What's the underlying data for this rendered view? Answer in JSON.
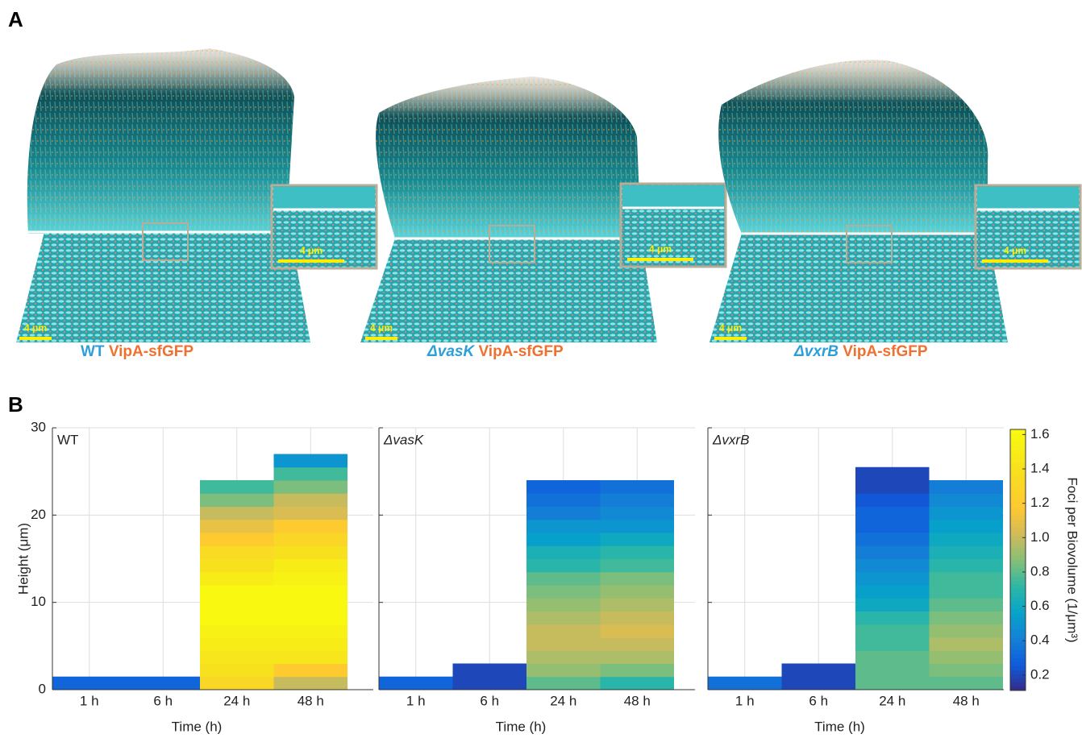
{
  "panel_a": {
    "label": "A",
    "images": [
      {
        "strain": "WT",
        "reporter": "VipA-sfGFP",
        "scale_bar": "4 μm",
        "inset_scale_bar": "4 μm"
      },
      {
        "strain": "ΔvasK",
        "reporter": "VipA-sfGFP",
        "scale_bar": "4 μm",
        "inset_scale_bar": "4 μm"
      },
      {
        "strain": "ΔvxrB",
        "reporter": "VipA-sfGFP",
        "scale_bar": "4 μm",
        "inset_scale_bar": "4 μm"
      }
    ]
  },
  "panel_b_label": "B",
  "colorbar": {
    "label": "Foci per Biovolume (1/μm³)",
    "colormap": "parula",
    "clim": [
      0.11,
      1.63
    ],
    "ticks": [
      0.2,
      0.4,
      0.6,
      0.8,
      {
        "value": 1,
        "label": "1.0"
      },
      1.2,
      1.4,
      1.6
    ]
  },
  "chart_data": [
    {
      "type": "layered-bar",
      "panel_title": "WT",
      "categories": [
        "1 h",
        "6 h",
        "24 h",
        "48 h"
      ],
      "x_label": "Time (h)",
      "y_label": "Height (μm)",
      "ylim": [
        0,
        30
      ],
      "yticks": [
        0,
        10,
        20,
        30
      ],
      "show_ytick_labels": true,
      "grid": true,
      "layer_height": 1.5,
      "bars": [
        [
          0.3
        ],
        [
          0.3
        ],
        [
          1.3,
          1.4,
          1.45,
          1.5,
          1.55,
          1.6,
          1.6,
          1.6,
          1.5,
          1.4,
          1.35,
          1.2,
          1.1,
          1.0,
          0.85,
          0.75
        ],
        [
          1.0,
          1.2,
          1.45,
          1.5,
          1.55,
          1.6,
          1.6,
          1.6,
          1.55,
          1.5,
          1.4,
          1.3,
          1.2,
          1.05,
          1.0,
          0.85,
          0.75,
          0.5
        ]
      ]
    },
    {
      "type": "layered-bar",
      "panel_title": "ΔvasK",
      "categories": [
        "1 h",
        "6 h",
        "24 h",
        "48 h"
      ],
      "x_label": "Time (h)",
      "ylim": [
        0,
        30
      ],
      "yticks": [
        0,
        10,
        20,
        30
      ],
      "show_ytick_labels": false,
      "grid": true,
      "layer_height": 1.5,
      "bars": [
        [
          0.3
        ],
        [
          0.2,
          0.2
        ],
        [
          0.8,
          0.9,
          0.95,
          1.0,
          1.0,
          0.95,
          0.9,
          0.85,
          0.8,
          0.7,
          0.65,
          0.55,
          0.5,
          0.4,
          0.35,
          0.3
        ],
        [
          0.7,
          0.85,
          0.95,
          1.0,
          1.05,
          1.0,
          0.95,
          0.9,
          0.85,
          0.75,
          0.7,
          0.6,
          0.5,
          0.45,
          0.4,
          0.35
        ]
      ]
    },
    {
      "type": "layered-bar",
      "panel_title": "ΔvxrB",
      "categories": [
        "1 h",
        "6 h",
        "24 h",
        "48 h"
      ],
      "x_label": "Time (h)",
      "ylim": [
        0,
        30
      ],
      "yticks": [
        0,
        10,
        20,
        30
      ],
      "show_ytick_labels": false,
      "grid": true,
      "layer_height": 1.5,
      "bars": [
        [
          0.35
        ],
        [
          0.2,
          0.2
        ],
        [
          0.8,
          0.8,
          0.8,
          0.75,
          0.75,
          0.7,
          0.6,
          0.55,
          0.5,
          0.45,
          0.4,
          0.35,
          0.3,
          0.3,
          0.25,
          0.2,
          0.2
        ],
        [
          0.8,
          0.85,
          0.9,
          0.95,
          0.9,
          0.85,
          0.8,
          0.75,
          0.75,
          0.7,
          0.65,
          0.6,
          0.55,
          0.5,
          0.45,
          0.4
        ]
      ]
    }
  ]
}
